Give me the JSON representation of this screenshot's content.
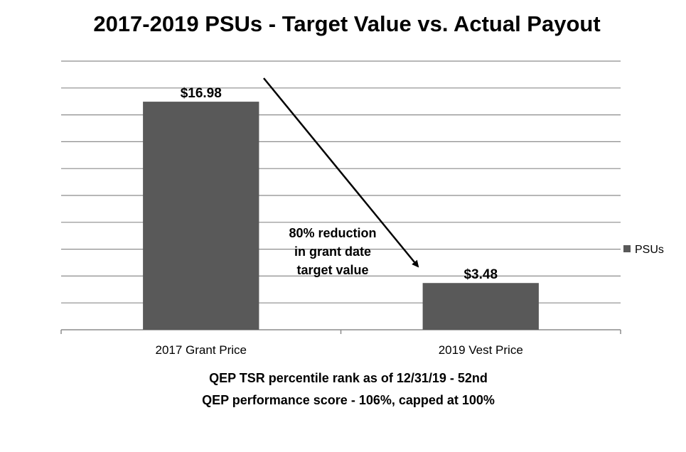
{
  "chart_data": {
    "type": "bar",
    "title": "2017-2019 PSUs - Target Value vs. Actual Payout",
    "categories": [
      "2017 Grant Price",
      "2019 Vest Price"
    ],
    "series": [
      {
        "name": "PSUs",
        "values": [
          16.98,
          3.48
        ],
        "color": "#595959"
      }
    ],
    "data_labels": [
      "$16.98",
      "$3.48"
    ],
    "ylim": [
      0,
      20
    ],
    "gridlines": true,
    "legend_position": "right",
    "annotation": {
      "lines": [
        "80% reduction",
        "in grant date",
        "target value"
      ],
      "arrow": "from top of first bar to second bar"
    },
    "footnotes": [
      "QEP TSR percentile rank as of 12/31/19 - 52nd",
      "QEP performance score - 106%, capped at 100%"
    ]
  }
}
